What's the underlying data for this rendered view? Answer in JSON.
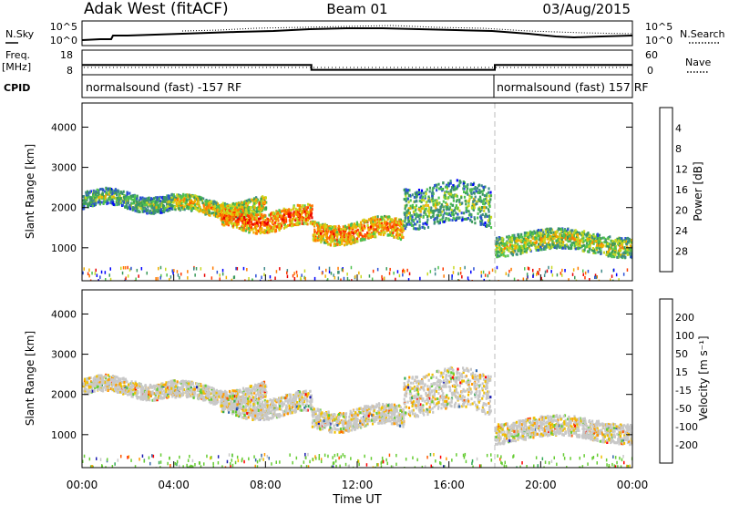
{
  "header": {
    "station": "Adak West (fitACF)",
    "beam": "Beam 01",
    "date": "03/Aug/2015"
  },
  "status_panels": {
    "nsky_label": "N.Sky",
    "nsearch_label": "N.Search",
    "noise_ticks": [
      "10^5",
      "10^0"
    ],
    "freq_label": "Freq.",
    "freq_unit": "[MHz]",
    "freq_ticks": [
      "18",
      "8"
    ],
    "nave_label": "Nave",
    "nave_ticks": [
      "60",
      "0"
    ],
    "cpid_label": "CPID",
    "cpid_left": "normalsound (fast) -157 RF",
    "cpid_right": "normalsound (fast) 157 RF"
  },
  "colors": {
    "power": [
      "#0000ff",
      "#2a4fd6",
      "#3f8a8a",
      "#3a9a5a",
      "#4fc24f",
      "#c8d820",
      "#f0b000",
      "#ff7a00",
      "#ff3a00",
      "#e80000"
    ],
    "velocity": [
      "#ff0000",
      "#ff5a00",
      "#ff9a00",
      "#f0c000",
      "#c8c8c8",
      "#c8c8c8",
      "#66cc33",
      "#33aa55",
      "#3366aa",
      "#1a1ab0"
    ]
  },
  "power_panel": {
    "ylabel": "Slant Range [km]",
    "yticks": [
      "1000",
      "2000",
      "3000",
      "4000"
    ],
    "colorbar_label": "Power [dB]",
    "colorbar_ticks": [
      "4",
      "8",
      "12",
      "16",
      "20",
      "24",
      "28"
    ]
  },
  "velocity_panel": {
    "ylabel": "Slant Range [km]",
    "yticks": [
      "1000",
      "2000",
      "3000",
      "4000"
    ],
    "colorbar_label": "Velocity [m s⁻¹]",
    "colorbar_ticks": [
      "200",
      "100",
      "50",
      "15",
      "-15",
      "-50",
      "-100",
      "-200"
    ]
  },
  "xaxis": {
    "label": "Time UT",
    "ticks": [
      "00:00",
      "04:00",
      "08:00",
      "12:00",
      "16:00",
      "20:00",
      "00:00"
    ]
  },
  "chart_data": {
    "type": "heatmap",
    "x_range_hours": [
      0,
      24
    ],
    "y_range_km": [
      180,
      4600
    ],
    "grid": false,
    "frequency_mhz": [
      {
        "from_hour": 0,
        "to_hour": 10,
        "value": 12
      },
      {
        "from_hour": 10,
        "to_hour": 18,
        "value": 10
      },
      {
        "from_hour": 18,
        "to_hour": 24,
        "value": 12
      }
    ],
    "echo_bands": [
      {
        "t": [
          0,
          4
        ],
        "r": [
          2000,
          2400
        ],
        "power": 14
      },
      {
        "t": [
          4,
          8
        ],
        "r": [
          1850,
          2250
        ],
        "power": 20
      },
      {
        "t": [
          6,
          10
        ],
        "r": [
          1500,
          2000
        ],
        "power": 26
      },
      {
        "t": [
          10,
          14
        ],
        "r": [
          1200,
          1700
        ],
        "power": 24
      },
      {
        "t": [
          14,
          17.8
        ],
        "r": [
          1600,
          2600
        ],
        "power": 14
      },
      {
        "t": [
          18,
          24
        ],
        "r": [
          900,
          1400
        ],
        "power": 18
      }
    ]
  }
}
